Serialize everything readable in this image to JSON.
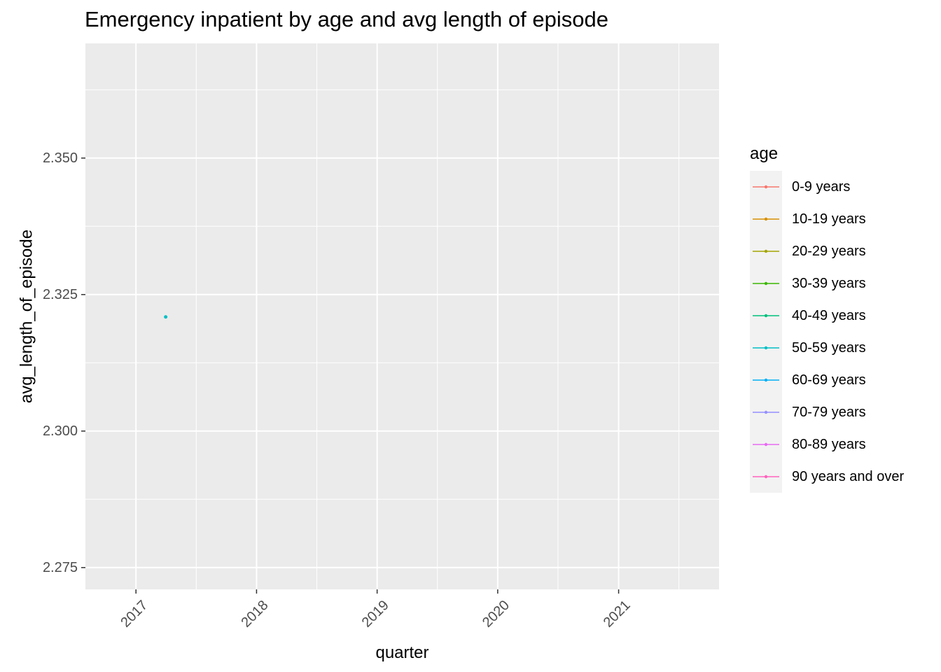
{
  "chart_data": {
    "type": "line",
    "title": "Emergency inpatient by age and avg length of episode",
    "xlabel": "quarter",
    "ylabel": "avg_length_of_episode",
    "x_tick_labels": [
      "2017",
      "2018",
      "2019",
      "2020",
      "2021"
    ],
    "xlim": [
      "2016-08-01",
      "2021-11-01"
    ],
    "y_ticks": [
      2.275,
      2.3,
      2.325,
      2.35
    ],
    "y_tick_labels": [
      "2.275",
      "2.300",
      "2.325",
      "2.350"
    ],
    "ylim": [
      2.271,
      2.371
    ],
    "grid": true,
    "panel_background": "#ebebeb",
    "legend": {
      "title": "age",
      "position": "right",
      "entries": [
        {
          "name": "0-9 years",
          "color": "#F8766D"
        },
        {
          "name": "10-19 years",
          "color": "#D89000"
        },
        {
          "name": "20-29 years",
          "color": "#A3A500"
        },
        {
          "name": "30-39 years",
          "color": "#39B600"
        },
        {
          "name": "40-49 years",
          "color": "#00BF7D"
        },
        {
          "name": "50-59 years",
          "color": "#00BFC4"
        },
        {
          "name": "60-69 years",
          "color": "#00B0F6"
        },
        {
          "name": "70-79 years",
          "color": "#9590FF"
        },
        {
          "name": "80-89 years",
          "color": "#E76BF3"
        },
        {
          "name": "90 years and over",
          "color": "#FF62BC"
        }
      ]
    },
    "series": [
      {
        "name": "50-59 years",
        "color": "#00BFC4",
        "points": [
          {
            "x": "2017-04-01",
            "y": 2.3209
          }
        ]
      }
    ]
  }
}
